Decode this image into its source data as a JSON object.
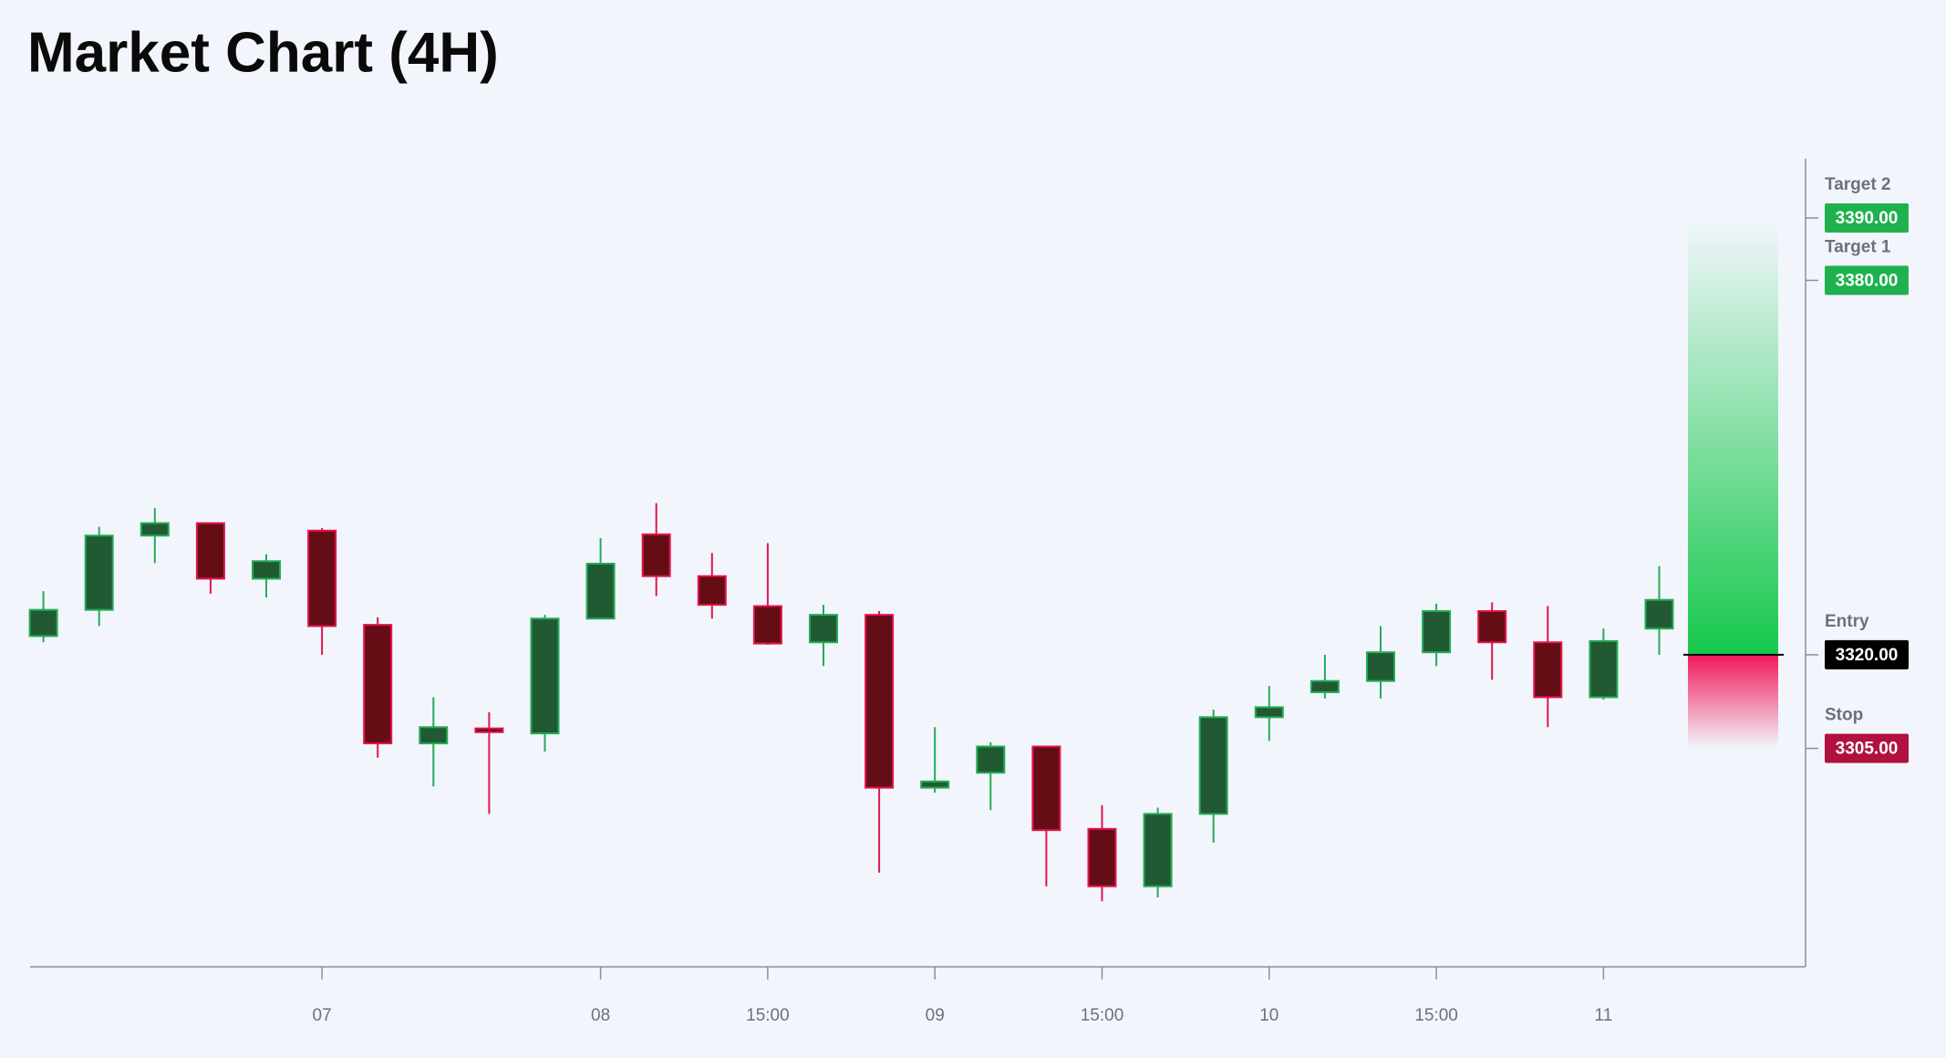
{
  "chart_data": {
    "type": "candlestick",
    "title": "Market Chart (4H)",
    "categories": [
      null,
      null,
      null,
      null,
      null,
      "07",
      null,
      null,
      null,
      null,
      "08",
      null,
      null,
      "15:00",
      null,
      null,
      "09",
      null,
      null,
      "15:00",
      null,
      null,
      "10",
      null,
      null,
      "15:00",
      null,
      null,
      "11",
      null
    ],
    "open": [
      3323.0,
      3327.2,
      3339.1,
      3341.1,
      3332.2,
      3339.9,
      3324.8,
      3305.8,
      3308.2,
      3307.4,
      3325.8,
      3339.3,
      3332.6,
      3327.8,
      3322.0,
      3326.4,
      3298.7,
      3301.1,
      3305.3,
      3292.1,
      3282.9,
      3294.5,
      3310.0,
      3314.0,
      3315.8,
      3320.4,
      3327.0,
      3322.0,
      3313.2,
      3324.2
    ],
    "high": [
      3330.2,
      3340.5,
      3343.5,
      3341.1,
      3336.1,
      3340.3,
      3326.0,
      3313.2,
      3310.8,
      3326.4,
      3338.7,
      3344.3,
      3336.3,
      3337.9,
      3328.0,
      3327.0,
      3308.4,
      3306.0,
      3305.3,
      3295.9,
      3295.5,
      3311.2,
      3315.0,
      3320.0,
      3324.6,
      3328.2,
      3328.4,
      3327.8,
      3324.2,
      3334.2
    ],
    "low": [
      3322.0,
      3324.6,
      3334.7,
      3329.8,
      3329.2,
      3320.0,
      3303.5,
      3298.9,
      3294.5,
      3304.5,
      3325.8,
      3329.4,
      3325.8,
      3321.6,
      3318.2,
      3285.1,
      3297.9,
      3295.1,
      3282.9,
      3280.5,
      3281.1,
      3289.9,
      3306.2,
      3313.0,
      3313.0,
      3318.2,
      3316.0,
      3308.4,
      3312.8,
      3320.0
    ],
    "close": [
      3327.2,
      3339.1,
      3341.1,
      3332.2,
      3335.0,
      3324.6,
      3305.8,
      3308.4,
      3307.6,
      3325.8,
      3334.6,
      3332.6,
      3328.0,
      3321.8,
      3326.4,
      3298.7,
      3299.7,
      3305.3,
      3291.9,
      3282.9,
      3294.5,
      3310.0,
      3311.6,
      3315.8,
      3320.4,
      3327.0,
      3322.0,
      3313.2,
      3322.2,
      3328.8
    ],
    "up_color": "#215a32",
    "up_border": "#24ab57",
    "down_color": "#650d15",
    "down_border": "#e3144f",
    "ylim": [
      3270,
      3399.5
    ],
    "levels": [
      {
        "name": "Target 2",
        "value": 3390,
        "label": "3390.00",
        "color": "#1fb14f"
      },
      {
        "name": "Target 1",
        "value": 3380,
        "label": "3380.00",
        "color": "#1fb14f"
      },
      {
        "name": "Entry",
        "value": 3320,
        "label": "3320.00",
        "color": "#000000"
      },
      {
        "name": "Stop",
        "value": 3305,
        "label": "3305.00",
        "color": "#b0113f"
      }
    ],
    "profit_color": "#16c84c",
    "loss_color": "#f0195a"
  }
}
